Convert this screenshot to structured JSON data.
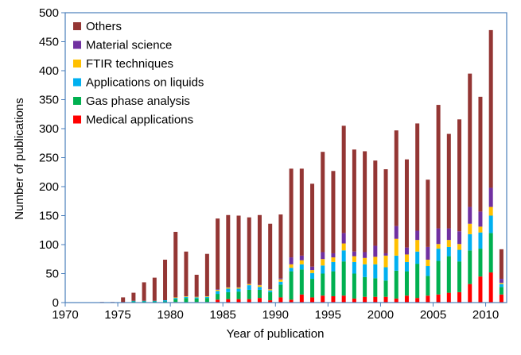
{
  "chart_data": {
    "type": "bar",
    "stacked": true,
    "xlabel": "Year of publication",
    "ylabel": "Number of publications",
    "xlim": [
      1970,
      2012
    ],
    "ylim": [
      0,
      500
    ],
    "x_ticks": [
      1970,
      1975,
      1980,
      1985,
      1990,
      1995,
      2000,
      2005,
      2010
    ],
    "y_ticks": [
      0,
      50,
      100,
      150,
      200,
      250,
      300,
      350,
      400,
      450,
      500
    ],
    "legend_position": "top-left",
    "grid": false,
    "years": [
      1970,
      1971,
      1972,
      1973,
      1974,
      1975,
      1976,
      1977,
      1978,
      1979,
      1980,
      1981,
      1982,
      1983,
      1984,
      1985,
      1986,
      1987,
      1988,
      1989,
      1990,
      1991,
      1992,
      1993,
      1994,
      1995,
      1996,
      1997,
      1998,
      1999,
      2000,
      2001,
      2002,
      2003,
      2004,
      2005,
      2006,
      2007,
      2008,
      2009,
      2010,
      2011
    ],
    "series": [
      {
        "name": "Medical applications",
        "color": "#ff0000",
        "values": [
          0,
          0,
          0,
          0,
          0,
          0,
          0,
          0,
          0,
          0,
          1,
          0,
          1,
          1,
          5,
          6,
          6,
          6,
          8,
          4,
          9,
          5,
          14,
          9,
          12,
          11,
          12,
          7,
          10,
          10,
          10,
          7,
          12,
          8,
          12,
          14,
          17,
          18,
          32,
          45,
          52,
          14
        ]
      },
      {
        "name": "Gas phase analysis",
        "color": "#00b050",
        "values": [
          0,
          0,
          0,
          0,
          0,
          0,
          2,
          2,
          2,
          2,
          5,
          8,
          6,
          7,
          10,
          12,
          13,
          16,
          14,
          14,
          22,
          49,
          43,
          32,
          38,
          43,
          59,
          43,
          34,
          32,
          28,
          48,
          42,
          59,
          34,
          58,
          63,
          53,
          58,
          48,
          68,
          13
        ]
      },
      {
        "name": "Applications on liquids",
        "color": "#00b0f0",
        "values": [
          0,
          0,
          0,
          0,
          0,
          0,
          1,
          1,
          1,
          2,
          2,
          2,
          2,
          2,
          5,
          6,
          5,
          8,
          5,
          3,
          5,
          6,
          9,
          10,
          14,
          16,
          19,
          20,
          22,
          24,
          23,
          26,
          16,
          21,
          17,
          21,
          16,
          20,
          28,
          28,
          30,
          5
        ]
      },
      {
        "name": "FTIR techniques",
        "color": "#ffc000",
        "values": [
          0,
          0,
          0,
          0,
          0,
          0,
          0,
          0,
          0,
          0,
          1,
          1,
          1,
          1,
          2,
          2,
          2,
          2,
          3,
          2,
          4,
          6,
          7,
          5,
          11,
          8,
          12,
          10,
          11,
          13,
          20,
          29,
          13,
          20,
          11,
          8,
          12,
          10,
          18,
          10,
          15,
          2
        ]
      },
      {
        "name": "Material science",
        "color": "#7030a0",
        "values": [
          0,
          0,
          0,
          0,
          0,
          0,
          0,
          0,
          0,
          0,
          0,
          0,
          0,
          0,
          1,
          1,
          1,
          1,
          1,
          1,
          2,
          12,
          8,
          6,
          12,
          7,
          18,
          8,
          10,
          19,
          4,
          22,
          12,
          16,
          22,
          27,
          20,
          22,
          29,
          26,
          33,
          7
        ]
      },
      {
        "name": "Others",
        "color": "#943634",
        "values": [
          0,
          0,
          0,
          1,
          1,
          9,
          14,
          32,
          40,
          70,
          113,
          77,
          38,
          73,
          122,
          124,
          123,
          114,
          120,
          112,
          110,
          153,
          150,
          143,
          173,
          142,
          185,
          176,
          174,
          147,
          145,
          165,
          152,
          185,
          116,
          213,
          163,
          193,
          230,
          198,
          272,
          51
        ]
      }
    ]
  }
}
